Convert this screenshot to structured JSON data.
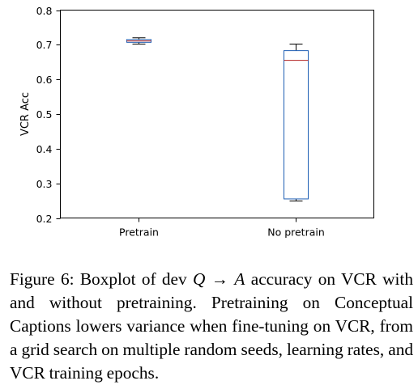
{
  "chart_data": {
    "type": "box",
    "ylabel": "VCR Acc",
    "xlabel": "",
    "categories": [
      "Pretrain",
      "No pretrain"
    ],
    "ylim": [
      0.2,
      0.8
    ],
    "yticks": [
      "0.2",
      "0.3",
      "0.4",
      "0.5",
      "0.6",
      "0.7",
      "0.8"
    ],
    "boxes": [
      {
        "label": "Pretrain",
        "min": 0.702,
        "q1": 0.707,
        "median": 0.711,
        "q3": 0.715,
        "max": 0.72
      },
      {
        "label": "No pretrain",
        "min": 0.249,
        "q1": 0.255,
        "median": 0.655,
        "q3": 0.683,
        "max": 0.702
      }
    ],
    "colors": {
      "box": "#1f5fb4",
      "median": "#b22222",
      "whisker": "#000000"
    }
  },
  "caption": {
    "prefix": "Figure 6: Boxplot of dev ",
    "math_q": "Q",
    "arrow": " → ",
    "math_a": "A",
    "rest": " accuracy on VCR with and without pretraining.  Pretraining on Con­ceptual Captions lowers variance when fine-tuning on VCR, from a grid search on multiple random seeds, learning rates, and VCR training epochs."
  }
}
